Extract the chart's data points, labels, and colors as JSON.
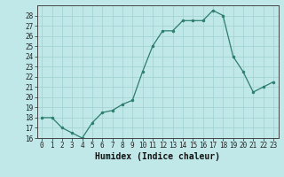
{
  "x": [
    0,
    1,
    2,
    3,
    4,
    5,
    6,
    7,
    8,
    9,
    10,
    11,
    12,
    13,
    14,
    15,
    16,
    17,
    18,
    19,
    20,
    21,
    22,
    23
  ],
  "y": [
    18,
    18,
    17,
    16.5,
    16,
    17.5,
    18.5,
    18.7,
    19.3,
    19.7,
    22.5,
    25,
    26.5,
    26.5,
    27.5,
    27.5,
    27.5,
    28.5,
    28,
    24,
    22.5,
    20.5,
    21,
    21.5
  ],
  "line_color": "#2d7d6e",
  "marker_color": "#2d7d6e",
  "bg_color": "#c0e8e8",
  "grid_color": "#a0d0d0",
  "xlabel": "Humidex (Indice chaleur)",
  "ylim": [
    16,
    29
  ],
  "xlim": [
    -0.5,
    23.5
  ],
  "yticks": [
    16,
    17,
    18,
    19,
    20,
    21,
    22,
    23,
    24,
    25,
    26,
    27,
    28
  ],
  "xticks": [
    0,
    1,
    2,
    3,
    4,
    5,
    6,
    7,
    8,
    9,
    10,
    11,
    12,
    13,
    14,
    15,
    16,
    17,
    18,
    19,
    20,
    21,
    22,
    23
  ],
  "tick_fontsize": 5.5,
  "label_fontsize": 7
}
